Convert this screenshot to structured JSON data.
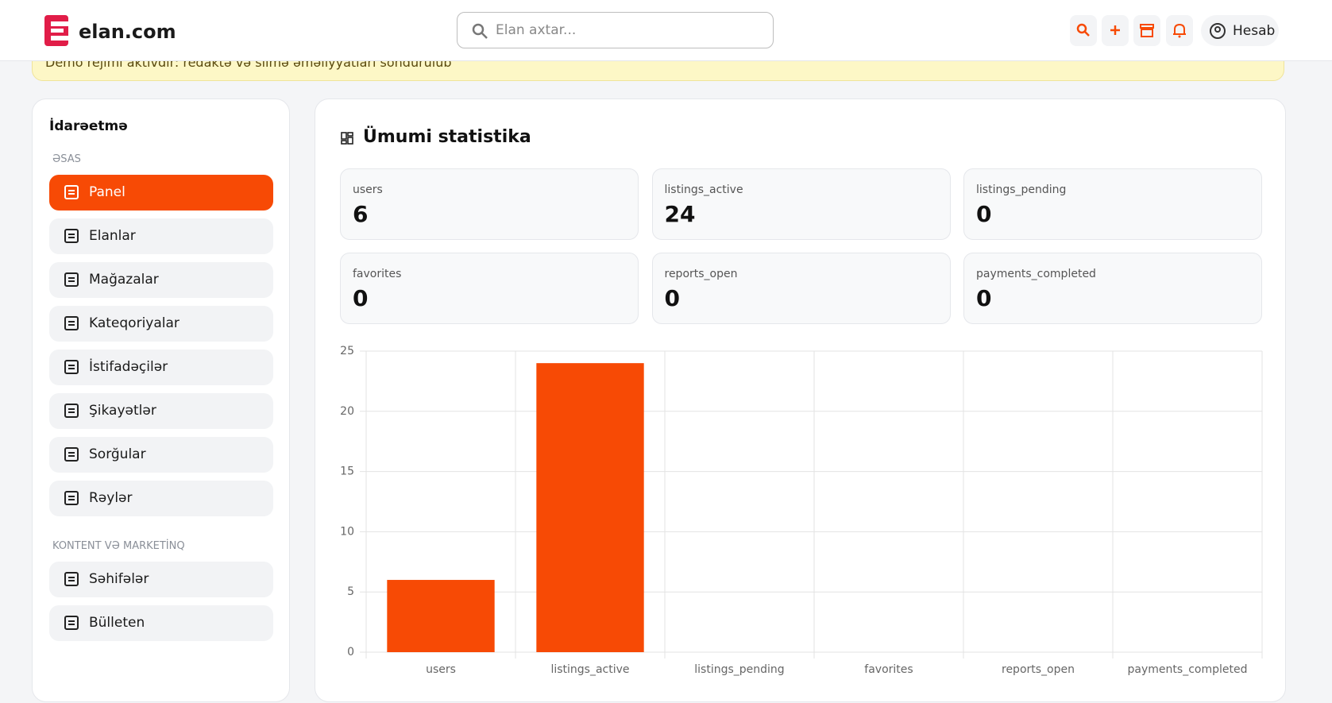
{
  "header": {
    "logo": "elan.com",
    "search_placeholder": "Elan axtar...",
    "account": "Hesab"
  },
  "banner": "Demo rejimi aktivdir: redaktə və silmə əməliyyatları söndürülüb",
  "sidebar": {
    "title": "İdarəetmə",
    "sections": [
      {
        "title": "ƏSAS",
        "items": [
          "Panel",
          "Elanlar",
          "Mağazalar",
          "Kateqoriyalar",
          "İstifadəçilər",
          "Şikayətlər",
          "Sorğular",
          "Rəylər"
        ]
      },
      {
        "title": "KONTENT VƏ MARKETİNQ",
        "items": [
          "Səhifələr",
          "Bülleten"
        ]
      }
    ]
  },
  "main": {
    "title": "Ümumi statistika"
  },
  "chart_data": {
    "type": "bar",
    "categories": [
      "users",
      "listings_active",
      "listings_pending",
      "favorites",
      "reports_open",
      "payments_completed"
    ],
    "values": [
      6,
      24,
      0,
      0,
      0,
      0
    ],
    "color": "#f74a05",
    "ylim": [
      0,
      25
    ],
    "yticks": [
      0,
      5,
      10,
      15,
      20,
      25
    ],
    "grid": true
  }
}
